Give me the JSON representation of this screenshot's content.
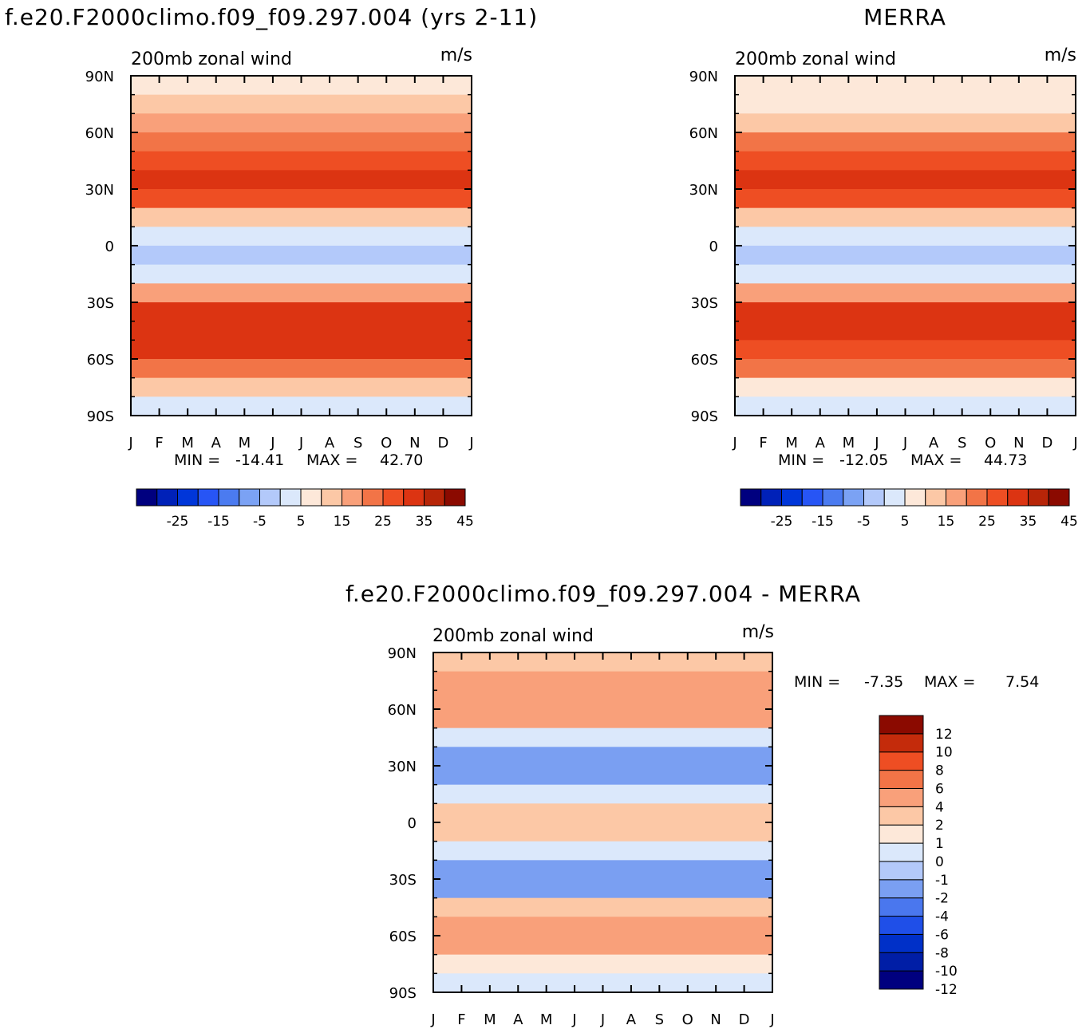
{
  "figure": {
    "top_left_title": "f.e20.F2000climo.f09_f09.297.004 (yrs 2-11)",
    "top_right_title": "MERRA",
    "bottom_title": "f.e20.F2000climo.f09_f09.297.004 - MERRA"
  },
  "colors": {
    "abs_levels": [
      "#00007f",
      "#0021b8",
      "#0036d9",
      "#2755f5",
      "#4b7bf0",
      "#7ba2f4",
      "#b3c9fa",
      "#dbe8fb",
      "#fde8d9",
      "#fcc8a6",
      "#f9a07a",
      "#f27447",
      "#ee4e23",
      "#dc3412",
      "#b72508",
      "#8b0a00"
    ],
    "diff_levels": [
      "#00007f",
      "#001ea6",
      "#0030c8",
      "#1f4fe8",
      "#4a77ee",
      "#7a9ff2",
      "#b3c9fa",
      "#dbe8fb",
      "#fde8d9",
      "#fcc8a6",
      "#f9a07a",
      "#f27447",
      "#ee4e23",
      "#c42b0b",
      "#8b0a00"
    ]
  },
  "chart_data": [
    {
      "type": "heatmap",
      "id": "model",
      "title": "f.e20.F2000climo.f09_f09.297.004 (yrs 2-11)",
      "left_string": "200mb zonal wind",
      "right_string": "m/s",
      "x_ticks": [
        "J",
        "F",
        "M",
        "A",
        "M",
        "J",
        "J",
        "A",
        "S",
        "O",
        "N",
        "D",
        "J"
      ],
      "y_ticks": [
        "90N",
        "60N",
        "30N",
        "0",
        "30S",
        "60S",
        "90S"
      ],
      "ylim": [
        -90,
        90
      ],
      "stats": {
        "min_label": "MIN =",
        "min": "-14.41",
        "max_label": "MAX =",
        "max": "42.70"
      },
      "colorbar_labels": [
        "-25",
        "-15",
        "-5",
        "5",
        "15",
        "25",
        "35",
        "45"
      ],
      "min": -14.41,
      "max": 42.7,
      "profile": [
        {
          "lat": 90,
          "v": 6
        },
        {
          "lat": 80,
          "v": 8
        },
        {
          "lat": 70,
          "v": 15
        },
        {
          "lat": 60,
          "v": 20
        },
        {
          "lat": 50,
          "v": 26
        },
        {
          "lat": 40,
          "v": 30
        },
        {
          "lat": 30,
          "v": 34
        },
        {
          "lat": 20,
          "v": 18
        },
        {
          "lat": 10,
          "v": 2
        },
        {
          "lat": 0,
          "v": -2
        },
        {
          "lat": -10,
          "v": -3
        },
        {
          "lat": -20,
          "v": 8
        },
        {
          "lat": -30,
          "v": 28
        },
        {
          "lat": -40,
          "v": 32
        },
        {
          "lat": -50,
          "v": 35
        },
        {
          "lat": -60,
          "v": 30
        },
        {
          "lat": -70,
          "v": 16
        },
        {
          "lat": -80,
          "v": 4
        },
        {
          "lat": -90,
          "v": -2
        }
      ]
    },
    {
      "type": "heatmap",
      "id": "merra",
      "title": "MERRA",
      "left_string": "200mb zonal wind",
      "right_string": "m/s",
      "x_ticks": [
        "J",
        "F",
        "M",
        "A",
        "M",
        "J",
        "J",
        "A",
        "S",
        "O",
        "N",
        "D",
        "J"
      ],
      "y_ticks": [
        "90N",
        "60N",
        "30N",
        "0",
        "30S",
        "60S",
        "90S"
      ],
      "ylim": [
        -90,
        90
      ],
      "stats": {
        "min_label": "MIN =",
        "min": "-12.05",
        "max_label": "MAX =",
        "max": "44.73"
      },
      "colorbar_labels": [
        "-25",
        "-15",
        "-5",
        "5",
        "15",
        "25",
        "35",
        "45"
      ],
      "min": -12.05,
      "max": 44.73,
      "profile": [
        {
          "lat": 90,
          "v": 4
        },
        {
          "lat": 80,
          "v": 6
        },
        {
          "lat": 70,
          "v": 10
        },
        {
          "lat": 60,
          "v": 16
        },
        {
          "lat": 50,
          "v": 24
        },
        {
          "lat": 40,
          "v": 30
        },
        {
          "lat": 30,
          "v": 36
        },
        {
          "lat": 20,
          "v": 20
        },
        {
          "lat": 10,
          "v": 4
        },
        {
          "lat": 0,
          "v": -2
        },
        {
          "lat": -10,
          "v": -3
        },
        {
          "lat": -20,
          "v": 8
        },
        {
          "lat": -30,
          "v": 30
        },
        {
          "lat": -40,
          "v": 33
        },
        {
          "lat": -50,
          "v": 32
        },
        {
          "lat": -60,
          "v": 26
        },
        {
          "lat": -70,
          "v": 14
        },
        {
          "lat": -80,
          "v": 4
        },
        {
          "lat": -90,
          "v": -2
        }
      ]
    },
    {
      "type": "heatmap",
      "id": "diff",
      "title": "f.e20.F2000climo.f09_f09.297.004 - MERRA",
      "left_string": "200mb zonal wind",
      "right_string": "m/s",
      "x_ticks": [
        "J",
        "F",
        "M",
        "A",
        "M",
        "J",
        "J",
        "A",
        "S",
        "O",
        "N",
        "D",
        "J"
      ],
      "y_ticks": [
        "90N",
        "60N",
        "30N",
        "0",
        "30S",
        "60S",
        "90S"
      ],
      "ylim": [
        -90,
        90
      ],
      "stats": {
        "min_label": "MIN =",
        "min": "-7.35",
        "max_label": "MAX =",
        "max": "7.54"
      },
      "colorbar_labels": [
        "12",
        "10",
        "8",
        "6",
        "4",
        "2",
        "1",
        "0",
        "-1",
        "-2",
        "-4",
        "-6",
        "-8",
        "-10",
        "-12"
      ],
      "min": -7.35,
      "max": 7.54,
      "profile": [
        {
          "lat": 90,
          "v": 0.5
        },
        {
          "lat": 80,
          "v": 2.5
        },
        {
          "lat": 70,
          "v": 3.5
        },
        {
          "lat": 60,
          "v": 2.5
        },
        {
          "lat": 50,
          "v": 1.5
        },
        {
          "lat": 40,
          "v": -3
        },
        {
          "lat": 30,
          "v": -4
        },
        {
          "lat": 20,
          "v": -2
        },
        {
          "lat": 10,
          "v": 1
        },
        {
          "lat": 0,
          "v": 2
        },
        {
          "lat": -10,
          "v": 0
        },
        {
          "lat": -20,
          "v": -2
        },
        {
          "lat": -30,
          "v": -4
        },
        {
          "lat": -40,
          "v": -1
        },
        {
          "lat": -50,
          "v": 3
        },
        {
          "lat": -60,
          "v": 4
        },
        {
          "lat": -70,
          "v": 1
        },
        {
          "lat": -80,
          "v": -1
        },
        {
          "lat": -90,
          "v": 0
        }
      ]
    }
  ]
}
